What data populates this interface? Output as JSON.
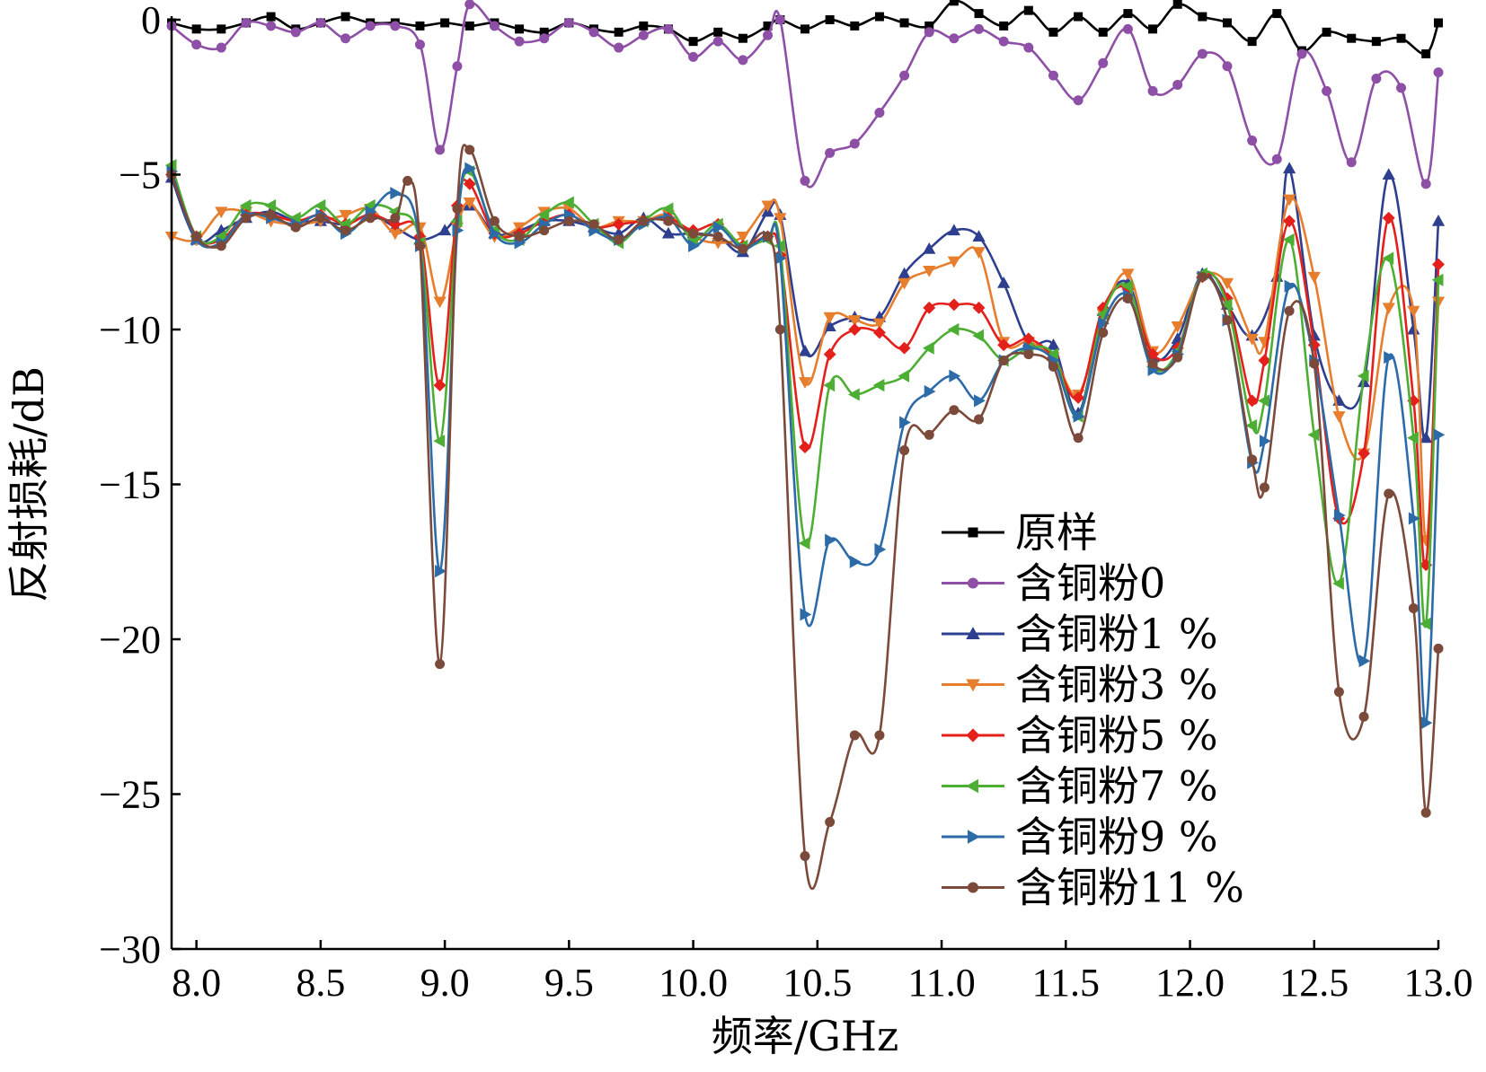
{
  "chart_data": {
    "type": "line",
    "xlabel": "频率/GHz",
    "ylabel": "反射损耗/dB",
    "xlim": [
      7.9,
      13.0
    ],
    "ylim": [
      -30,
      0
    ],
    "xticks": [
      8.0,
      8.5,
      9.0,
      9.5,
      10.0,
      10.5,
      11.0,
      11.5,
      12.0,
      12.5,
      13.0
    ],
    "xtick_labels": [
      "8.0",
      "8.5",
      "9.0",
      "9.5",
      "10.0",
      "10.5",
      "11.0",
      "11.5",
      "12.0",
      "12.5",
      "13.0"
    ],
    "yticks": [
      0,
      -5,
      -10,
      -15,
      -20,
      -25,
      -30
    ],
    "ytick_labels": [
      "0",
      "−5",
      "−10",
      "−15",
      "−20",
      "−25",
      "−30"
    ],
    "grid": false,
    "legend_position": "lower-right",
    "series": [
      {
        "name": "原样",
        "color": "#000000",
        "marker": "square",
        "x": [
          7.9,
          8.0,
          8.1,
          8.2,
          8.3,
          8.4,
          8.5,
          8.6,
          8.7,
          8.8,
          8.9,
          9.0,
          9.1,
          9.2,
          9.3,
          9.4,
          9.5,
          9.6,
          9.7,
          9.8,
          9.9,
          10.0,
          10.1,
          10.2,
          10.3,
          10.35,
          10.45,
          10.55,
          10.65,
          10.75,
          10.85,
          10.95,
          11.05,
          11.15,
          11.25,
          11.35,
          11.45,
          11.55,
          11.65,
          11.75,
          11.85,
          11.95,
          12.05,
          12.15,
          12.25,
          12.35,
          12.45,
          12.55,
          12.65,
          12.75,
          12.85,
          12.95,
          13.0
        ],
        "y": [
          -0.1,
          -0.3,
          -0.3,
          -0.1,
          0.1,
          -0.3,
          -0.1,
          0.1,
          -0.1,
          -0.1,
          -0.2,
          -0.1,
          -0.2,
          -0.1,
          -0.3,
          -0.4,
          -0.1,
          -0.3,
          -0.4,
          -0.2,
          -0.3,
          -0.7,
          -0.4,
          -0.6,
          -0.2,
          0.0,
          -0.3,
          0.0,
          -0.2,
          0.1,
          -0.1,
          -0.2,
          0.6,
          0.2,
          -0.2,
          0.3,
          -0.4,
          0.1,
          -0.4,
          0.2,
          -0.3,
          0.5,
          0.1,
          -0.1,
          -0.7,
          0.2,
          -1.0,
          -0.4,
          -0.6,
          -0.7,
          -0.6,
          -1.1,
          -0.1
        ]
      },
      {
        "name": "含铜粉0",
        "color": "#8E4FA6",
        "marker": "circle",
        "x": [
          7.9,
          8.0,
          8.1,
          8.2,
          8.3,
          8.4,
          8.5,
          8.6,
          8.7,
          8.8,
          8.9,
          8.98,
          9.05,
          9.1,
          9.2,
          9.3,
          9.4,
          9.5,
          9.6,
          9.7,
          9.8,
          9.9,
          10.0,
          10.1,
          10.2,
          10.3,
          10.35,
          10.45,
          10.55,
          10.65,
          10.75,
          10.85,
          10.95,
          11.05,
          11.15,
          11.25,
          11.35,
          11.45,
          11.55,
          11.65,
          11.75,
          11.85,
          11.95,
          12.05,
          12.15,
          12.25,
          12.35,
          12.45,
          12.55,
          12.65,
          12.75,
          12.85,
          12.95,
          13.0
        ],
        "y": [
          -0.2,
          -0.8,
          -0.9,
          -0.1,
          -0.2,
          -0.4,
          -0.1,
          -0.6,
          -0.2,
          -0.2,
          -0.8,
          -4.2,
          -1.5,
          0.5,
          -0.2,
          -0.7,
          -0.6,
          -0.1,
          -0.4,
          -0.9,
          -0.5,
          -0.3,
          -1.2,
          -0.7,
          -1.3,
          -0.5,
          0.0,
          -5.2,
          -4.3,
          -4.0,
          -3.0,
          -1.8,
          -0.4,
          -0.6,
          -0.3,
          -0.7,
          -0.9,
          -1.8,
          -2.6,
          -1.4,
          -0.3,
          -2.3,
          -2.1,
          -1.1,
          -1.5,
          -3.9,
          -4.5,
          -1.1,
          -2.3,
          -4.6,
          -1.9,
          -2.2,
          -5.3,
          -1.7
        ]
      },
      {
        "name": "含铜粉1 %",
        "color": "#2E3F8F",
        "marker": "triangle-up",
        "x": [
          7.9,
          8.0,
          8.1,
          8.2,
          8.3,
          8.4,
          8.5,
          8.6,
          8.7,
          8.8,
          8.9,
          9.0,
          9.1,
          9.2,
          9.3,
          9.4,
          9.5,
          9.6,
          9.7,
          9.8,
          9.9,
          10.0,
          10.1,
          10.2,
          10.3,
          10.35,
          10.45,
          10.55,
          10.65,
          10.75,
          10.85,
          10.95,
          11.05,
          11.15,
          11.25,
          11.35,
          11.45,
          11.55,
          11.65,
          11.75,
          11.85,
          11.95,
          12.05,
          12.15,
          12.25,
          12.35,
          12.4,
          12.5,
          12.6,
          12.7,
          12.8,
          12.9,
          12.95,
          13.0
        ],
        "y": [
          -5.1,
          -7.1,
          -6.8,
          -6.4,
          -6.2,
          -6.5,
          -6.5,
          -6.6,
          -6.3,
          -6.7,
          -7.1,
          -6.8,
          -6.0,
          -6.9,
          -6.8,
          -6.5,
          -6.5,
          -6.7,
          -6.9,
          -6.4,
          -6.9,
          -6.9,
          -7.0,
          -7.5,
          -6.2,
          -6.3,
          -10.7,
          -9.9,
          -9.6,
          -9.6,
          -8.2,
          -7.4,
          -6.8,
          -7.0,
          -8.5,
          -10.4,
          -10.5,
          -12.7,
          -9.4,
          -8.5,
          -10.9,
          -10.3,
          -8.2,
          -9.2,
          -10.2,
          -8.3,
          -4.8,
          -10.2,
          -12.3,
          -11.7,
          -5.0,
          -10.0,
          -13.5,
          -6.5
        ]
      },
      {
        "name": "含铜粉3 %",
        "color": "#E67E2E",
        "marker": "triangle-down",
        "x": [
          7.9,
          8.0,
          8.1,
          8.2,
          8.3,
          8.4,
          8.5,
          8.6,
          8.7,
          8.8,
          8.9,
          8.98,
          9.05,
          9.1,
          9.2,
          9.3,
          9.4,
          9.5,
          9.6,
          9.7,
          9.8,
          9.9,
          10.0,
          10.1,
          10.2,
          10.3,
          10.35,
          10.45,
          10.55,
          10.65,
          10.75,
          10.85,
          10.95,
          11.05,
          11.15,
          11.25,
          11.35,
          11.45,
          11.55,
          11.65,
          11.75,
          11.85,
          11.95,
          12.05,
          12.15,
          12.25,
          12.3,
          12.4,
          12.5,
          12.6,
          12.7,
          12.8,
          12.9,
          12.95,
          13.0
        ],
        "y": [
          -7.0,
          -7.1,
          -6.2,
          -6.2,
          -6.5,
          -6.6,
          -6.5,
          -6.3,
          -6.1,
          -6.9,
          -6.7,
          -9.1,
          -6.7,
          -5.9,
          -7.0,
          -6.7,
          -6.2,
          -6.1,
          -6.7,
          -6.5,
          -6.5,
          -6.3,
          -7.0,
          -7.2,
          -7.0,
          -6.0,
          -6.4,
          -11.7,
          -9.6,
          -9.7,
          -9.8,
          -8.5,
          -8.1,
          -7.8,
          -7.5,
          -10.4,
          -10.4,
          -10.9,
          -12.1,
          -9.5,
          -8.2,
          -10.7,
          -9.9,
          -8.3,
          -8.5,
          -10.3,
          -10.4,
          -5.8,
          -8.3,
          -12.8,
          -14.0,
          -9.3,
          -9.4,
          -16.8,
          -9.1
        ]
      },
      {
        "name": "含铜粉5 %",
        "color": "#E3201B",
        "marker": "diamond",
        "x": [
          7.9,
          8.0,
          8.1,
          8.2,
          8.3,
          8.4,
          8.5,
          8.6,
          8.7,
          8.8,
          8.9,
          8.98,
          9.05,
          9.1,
          9.2,
          9.3,
          9.4,
          9.5,
          9.6,
          9.7,
          9.8,
          9.9,
          10.0,
          10.1,
          10.2,
          10.3,
          10.35,
          10.45,
          10.55,
          10.65,
          10.75,
          10.85,
          10.95,
          11.05,
          11.15,
          11.25,
          11.35,
          11.45,
          11.55,
          11.65,
          11.75,
          11.85,
          11.95,
          12.05,
          12.15,
          12.25,
          12.3,
          12.4,
          12.5,
          12.6,
          12.7,
          12.8,
          12.9,
          12.95,
          13.0
        ],
        "y": [
          -5.0,
          -7.0,
          -7.1,
          -6.3,
          -6.3,
          -6.5,
          -6.3,
          -6.6,
          -6.3,
          -6.6,
          -7.0,
          -11.8,
          -6.0,
          -5.3,
          -6.9,
          -6.9,
          -6.5,
          -6.3,
          -6.7,
          -6.6,
          -6.5,
          -6.4,
          -6.8,
          -6.6,
          -7.3,
          -7.0,
          -7.6,
          -13.8,
          -10.8,
          -10.0,
          -10.1,
          -10.6,
          -9.3,
          -9.2,
          -9.3,
          -10.5,
          -10.3,
          -10.9,
          -12.2,
          -9.3,
          -8.7,
          -10.8,
          -10.6,
          -8.3,
          -9.0,
          -12.3,
          -11.0,
          -6.5,
          -10.5,
          -16.1,
          -14.0,
          -6.4,
          -12.3,
          -17.6,
          -7.9
        ]
      },
      {
        "name": "含铜粉7 %",
        "color": "#4DAE34",
        "marker": "triangle-left",
        "x": [
          7.9,
          8.0,
          8.1,
          8.2,
          8.3,
          8.4,
          8.5,
          8.6,
          8.7,
          8.8,
          8.9,
          8.98,
          9.05,
          9.1,
          9.2,
          9.3,
          9.4,
          9.5,
          9.6,
          9.7,
          9.8,
          9.9,
          10.0,
          10.1,
          10.2,
          10.3,
          10.35,
          10.45,
          10.55,
          10.65,
          10.75,
          10.85,
          10.95,
          11.05,
          11.15,
          11.25,
          11.35,
          11.45,
          11.55,
          11.65,
          11.75,
          11.85,
          11.95,
          12.05,
          12.15,
          12.25,
          12.3,
          12.4,
          12.5,
          12.6,
          12.7,
          12.8,
          12.9,
          12.95,
          13.0
        ],
        "y": [
          -4.7,
          -7.0,
          -7.0,
          -6.0,
          -6.0,
          -6.4,
          -6.0,
          -6.6,
          -6.0,
          -6.2,
          -7.2,
          -13.6,
          -6.5,
          -4.9,
          -6.8,
          -7.1,
          -6.3,
          -5.9,
          -6.6,
          -7.2,
          -6.5,
          -6.1,
          -7.1,
          -6.6,
          -7.3,
          -7.1,
          -7.3,
          -16.9,
          -11.8,
          -12.1,
          -11.8,
          -11.5,
          -10.6,
          -10.0,
          -10.2,
          -11.0,
          -10.6,
          -10.8,
          -12.8,
          -9.5,
          -8.6,
          -11.2,
          -10.7,
          -8.2,
          -9.2,
          -13.1,
          -12.3,
          -7.1,
          -13.4,
          -18.2,
          -11.5,
          -7.7,
          -13.5,
          -19.5,
          -8.4
        ]
      },
      {
        "name": "含铜粉9 %",
        "color": "#2C6BA8",
        "marker": "triangle-right",
        "x": [
          7.9,
          8.0,
          8.1,
          8.2,
          8.3,
          8.4,
          8.5,
          8.6,
          8.7,
          8.8,
          8.9,
          8.98,
          9.05,
          9.1,
          9.2,
          9.3,
          9.4,
          9.5,
          9.6,
          9.7,
          9.8,
          9.9,
          10.0,
          10.1,
          10.2,
          10.3,
          10.35,
          10.45,
          10.55,
          10.65,
          10.75,
          10.85,
          10.95,
          11.05,
          11.15,
          11.25,
          11.35,
          11.45,
          11.55,
          11.65,
          11.75,
          11.85,
          11.95,
          12.05,
          12.15,
          12.25,
          12.3,
          12.4,
          12.5,
          12.6,
          12.7,
          12.8,
          12.9,
          12.95,
          13.0
        ],
        "y": [
          -4.9,
          -7.1,
          -7.2,
          -6.3,
          -6.4,
          -6.6,
          -6.3,
          -6.9,
          -6.2,
          -5.6,
          -7.3,
          -17.8,
          -6.8,
          -4.8,
          -6.9,
          -7.2,
          -6.6,
          -6.3,
          -6.8,
          -7.1,
          -6.6,
          -6.4,
          -7.3,
          -6.7,
          -7.4,
          -7.0,
          -7.7,
          -19.2,
          -16.8,
          -17.5,
          -17.1,
          -13.0,
          -12.0,
          -11.5,
          -12.3,
          -11.0,
          -10.6,
          -11.0,
          -12.8,
          -9.8,
          -8.9,
          -11.3,
          -10.8,
          -8.3,
          -9.7,
          -14.3,
          -13.6,
          -8.6,
          -11.0,
          -16.0,
          -20.7,
          -10.9,
          -16.1,
          -22.7,
          -13.4
        ]
      },
      {
        "name": "含铜粉11 %",
        "color": "#7B4A3A",
        "marker": "circle",
        "x": [
          7.9,
          8.0,
          8.1,
          8.2,
          8.3,
          8.4,
          8.5,
          8.6,
          8.7,
          8.8,
          8.85,
          8.9,
          8.98,
          9.05,
          9.1,
          9.2,
          9.3,
          9.4,
          9.5,
          9.6,
          9.7,
          9.8,
          9.9,
          10.0,
          10.1,
          10.2,
          10.3,
          10.35,
          10.45,
          10.55,
          10.65,
          10.75,
          10.85,
          10.95,
          11.05,
          11.15,
          11.25,
          11.35,
          11.45,
          11.55,
          11.65,
          11.75,
          11.85,
          11.95,
          12.05,
          12.15,
          12.25,
          12.3,
          12.4,
          12.5,
          12.6,
          12.7,
          12.8,
          12.9,
          12.95,
          13.0
        ],
        "y": [
          -5.0,
          -7.0,
          -7.3,
          -6.4,
          -6.3,
          -6.7,
          -6.4,
          -6.8,
          -6.4,
          -6.4,
          -5.2,
          -7.3,
          -20.8,
          -6.1,
          -4.2,
          -6.5,
          -7.0,
          -6.8,
          -6.5,
          -6.6,
          -7.1,
          -6.5,
          -6.5,
          -6.9,
          -7.0,
          -7.4,
          -7.0,
          -10.0,
          -27.0,
          -25.9,
          -23.1,
          -23.1,
          -13.9,
          -13.4,
          -12.6,
          -12.9,
          -11.0,
          -10.8,
          -11.2,
          -13.5,
          -10.1,
          -9.0,
          -11.1,
          -10.9,
          -8.3,
          -9.7,
          -14.2,
          -15.1,
          -9.4,
          -11.1,
          -21.7,
          -22.5,
          -15.3,
          -19.0,
          -25.6,
          -20.3
        ]
      }
    ]
  }
}
